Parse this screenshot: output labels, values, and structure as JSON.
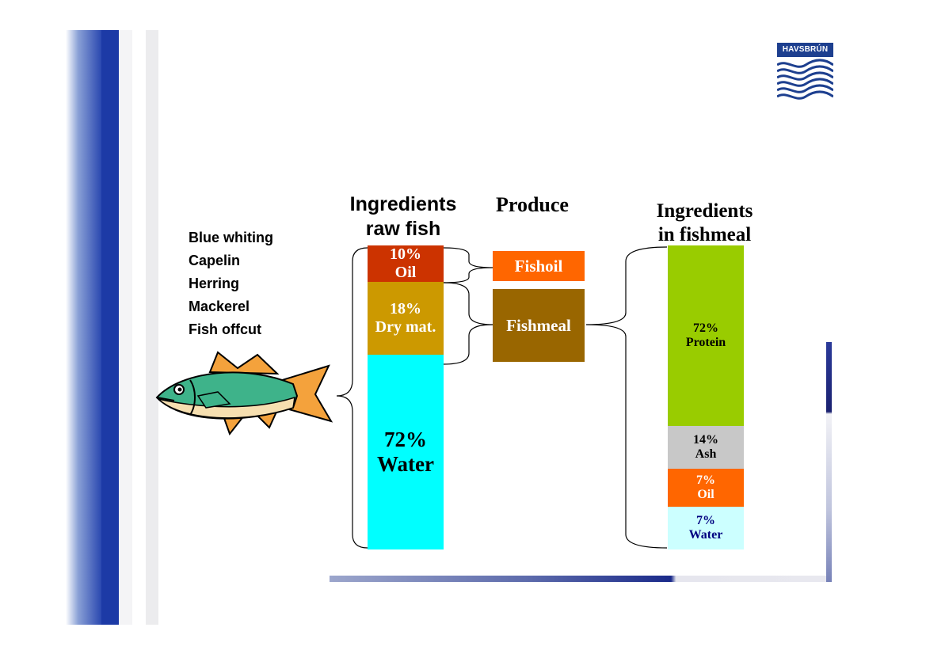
{
  "logo": {
    "brand": "HAVSBRÚN"
  },
  "headings": {
    "raw_fish_line1": "Ingredients",
    "raw_fish_line2": "raw fish",
    "produce": "Produce",
    "fishmeal_line1": "Ingredients",
    "fishmeal_line2": "in fishmeal"
  },
  "fish_types": [
    "Blue whiting",
    "Capelin",
    "Herring",
    "Mackerel",
    "Fish offcut"
  ],
  "raw_fish": [
    {
      "pct": "10%",
      "label": "Oil",
      "value": 10,
      "color": "#cc3300",
      "text_color": "#ffffff"
    },
    {
      "pct": "18%",
      "label": "Dry mat.",
      "value": 18,
      "color": "#cc9900",
      "text_color": "#ffffff"
    },
    {
      "pct": "72%",
      "label": "Water",
      "value": 72,
      "color": "#00ffff",
      "text_color": "#000000"
    }
  ],
  "products": [
    {
      "label": "Fishoil",
      "color": "#ff6600"
    },
    {
      "label": "Fishmeal",
      "color": "#996600"
    }
  ],
  "fishmeal": [
    {
      "pct": "72%",
      "label": "Protein",
      "value": 72,
      "color": "#99cc00",
      "text_color": "#000000"
    },
    {
      "pct": "14%",
      "label": "Ash",
      "value": 14,
      "color": "#c8c8c8",
      "text_color": "#000000"
    },
    {
      "pct": "7%",
      "label": "Oil",
      "value": 7,
      "color": "#ff6600",
      "text_color": "#ffffff"
    },
    {
      "pct": "7%",
      "label": "Water",
      "value": 7,
      "color": "#ccffff",
      "text_color": "#000080"
    }
  ]
}
